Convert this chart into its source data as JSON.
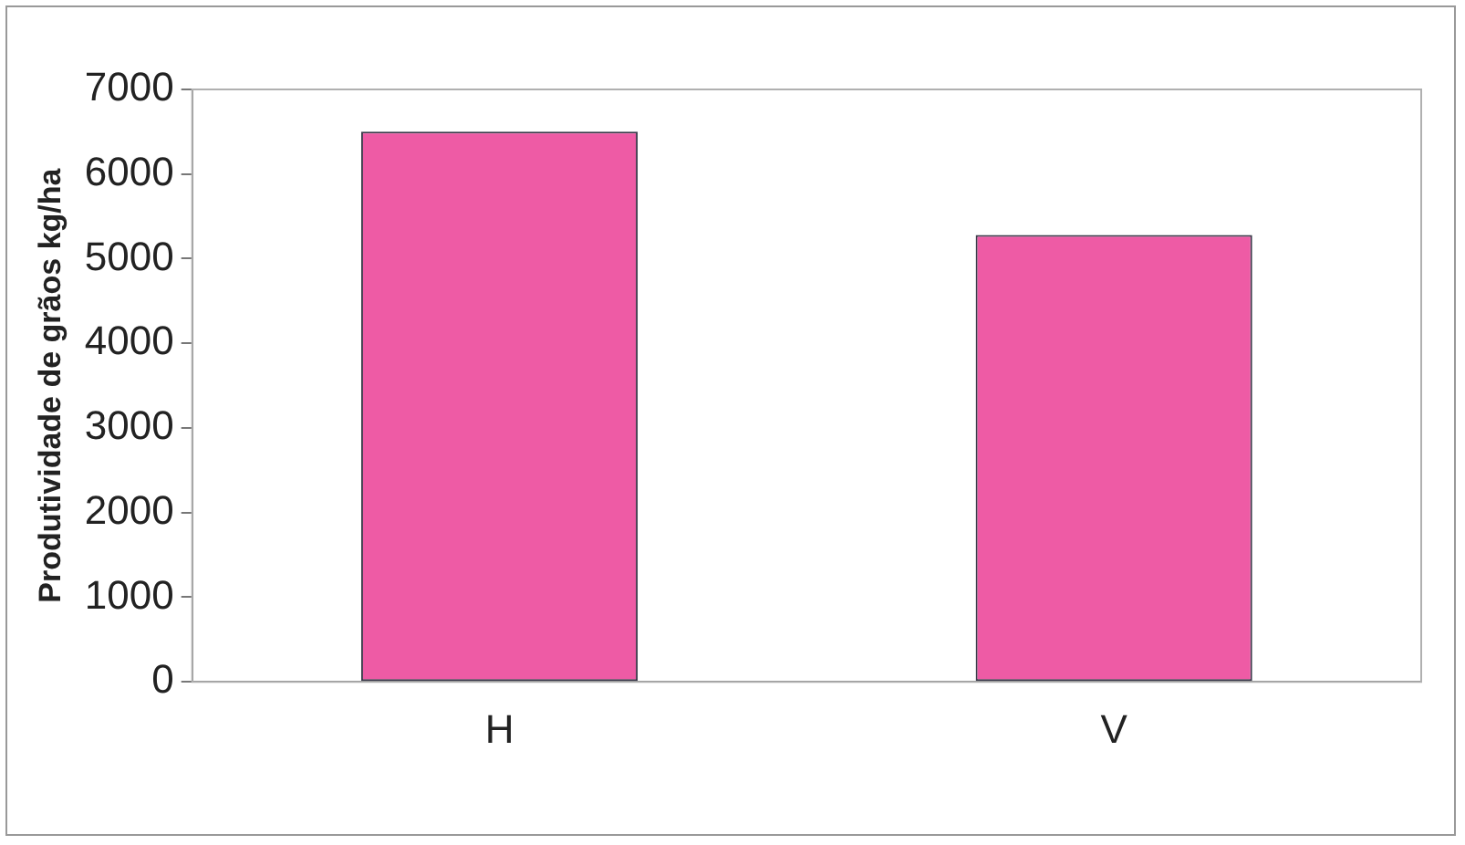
{
  "chart_data": {
    "type": "bar",
    "ylabel": "Produtividade de grãos kg/ha",
    "categories": [
      "H",
      "V"
    ],
    "values": [
      6500,
      5280
    ],
    "color": "#ee5ba5",
    "ylim": [
      0,
      7000
    ],
    "yticks": [
      0,
      1000,
      2000,
      3000,
      4000,
      5000,
      6000,
      7000
    ],
    "grid": false,
    "legend": false
  }
}
